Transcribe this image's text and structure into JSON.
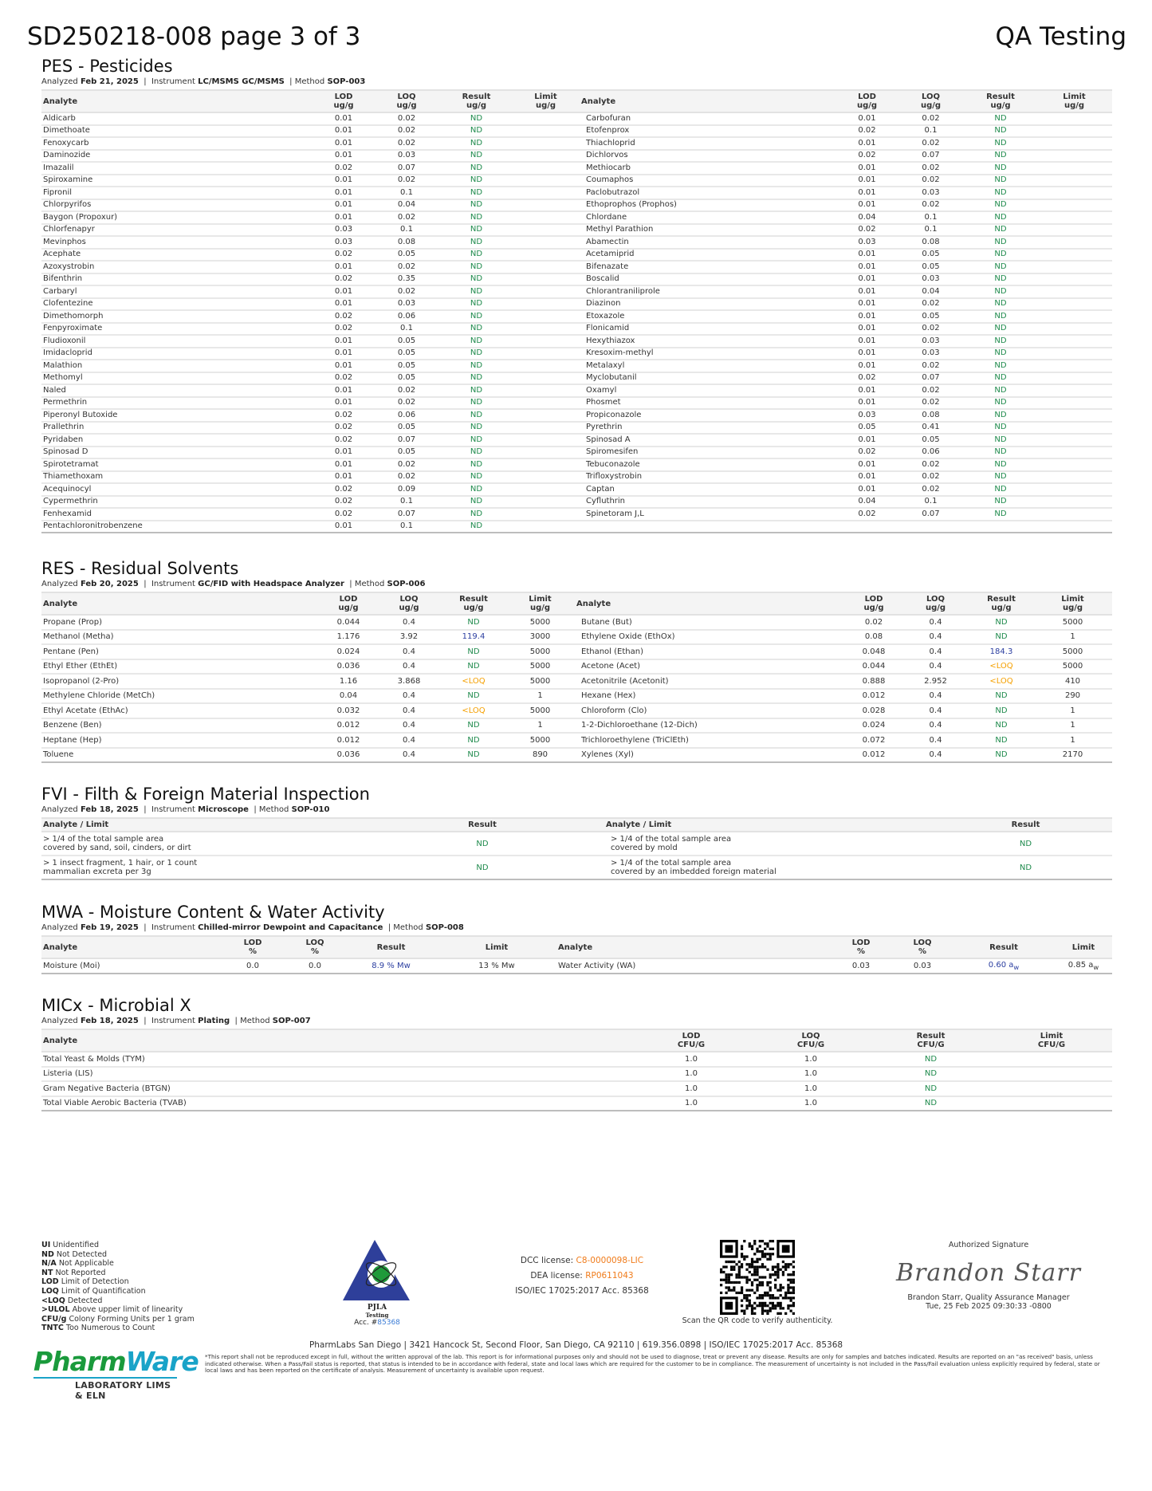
{
  "header": {
    "title": "SD250218-008 page 3 of 3",
    "right": "QA Testing"
  },
  "colors": {
    "nd": "#1e8a4c",
    "value": "#2b3ea0",
    "loq": "#f5a000",
    "license": "#f07b1a"
  },
  "pes": {
    "title": "PES - Pesticides",
    "meta": {
      "analyzed_label": "Analyzed",
      "analyzed": "Feb 21, 2025",
      "instrument_label": "Instrument",
      "instrument": "LC/MSMS GC/MSMS",
      "method_label": "Method",
      "method": "SOP-003"
    },
    "headers": [
      "Analyte",
      "LOD\nug/g",
      "LOQ\nug/g",
      "Result\nug/g",
      "Limit\nug/g"
    ],
    "left": [
      [
        "Aldicarb",
        "0.01",
        "0.02",
        "ND",
        ""
      ],
      [
        "Dimethoate",
        "0.01",
        "0.02",
        "ND",
        ""
      ],
      [
        "Fenoxycarb",
        "0.01",
        "0.02",
        "ND",
        ""
      ],
      [
        "Daminozide",
        "0.01",
        "0.03",
        "ND",
        ""
      ],
      [
        "Imazalil",
        "0.02",
        "0.07",
        "ND",
        ""
      ],
      [
        "Spiroxamine",
        "0.01",
        "0.02",
        "ND",
        ""
      ],
      [
        "Fipronil",
        "0.01",
        "0.1",
        "ND",
        ""
      ],
      [
        "Chlorpyrifos",
        "0.01",
        "0.04",
        "ND",
        ""
      ],
      [
        "Baygon (Propoxur)",
        "0.01",
        "0.02",
        "ND",
        ""
      ],
      [
        "Chlorfenapyr",
        "0.03",
        "0.1",
        "ND",
        ""
      ],
      [
        "Mevinphos",
        "0.03",
        "0.08",
        "ND",
        ""
      ],
      [
        "Acephate",
        "0.02",
        "0.05",
        "ND",
        ""
      ],
      [
        "Azoxystrobin",
        "0.01",
        "0.02",
        "ND",
        ""
      ],
      [
        "Bifenthrin",
        "0.02",
        "0.35",
        "ND",
        ""
      ],
      [
        "Carbaryl",
        "0.01",
        "0.02",
        "ND",
        ""
      ],
      [
        "Clofentezine",
        "0.01",
        "0.03",
        "ND",
        ""
      ],
      [
        "Dimethomorph",
        "0.02",
        "0.06",
        "ND",
        ""
      ],
      [
        "Fenpyroximate",
        "0.02",
        "0.1",
        "ND",
        ""
      ],
      [
        "Fludioxonil",
        "0.01",
        "0.05",
        "ND",
        ""
      ],
      [
        "Imidacloprid",
        "0.01",
        "0.05",
        "ND",
        ""
      ],
      [
        "Malathion",
        "0.01",
        "0.05",
        "ND",
        ""
      ],
      [
        "Methomyl",
        "0.02",
        "0.05",
        "ND",
        ""
      ],
      [
        "Naled",
        "0.01",
        "0.02",
        "ND",
        ""
      ],
      [
        "Permethrin",
        "0.01",
        "0.02",
        "ND",
        ""
      ],
      [
        "Piperonyl Butoxide",
        "0.02",
        "0.06",
        "ND",
        ""
      ],
      [
        "Prallethrin",
        "0.02",
        "0.05",
        "ND",
        ""
      ],
      [
        "Pyridaben",
        "0.02",
        "0.07",
        "ND",
        ""
      ],
      [
        "Spinosad D",
        "0.01",
        "0.05",
        "ND",
        ""
      ],
      [
        "Spirotetramat",
        "0.01",
        "0.02",
        "ND",
        ""
      ],
      [
        "Thiamethoxam",
        "0.01",
        "0.02",
        "ND",
        ""
      ],
      [
        "Acequinocyl",
        "0.02",
        "0.09",
        "ND",
        ""
      ],
      [
        "Cypermethrin",
        "0.02",
        "0.1",
        "ND",
        ""
      ],
      [
        "Fenhexamid",
        "0.02",
        "0.07",
        "ND",
        ""
      ],
      [
        "Pentachloronitrobenzene",
        "0.01",
        "0.1",
        "ND",
        ""
      ]
    ],
    "right": [
      [
        "Carbofuran",
        "0.01",
        "0.02",
        "ND",
        ""
      ],
      [
        "Etofenprox",
        "0.02",
        "0.1",
        "ND",
        ""
      ],
      [
        "Thiachloprid",
        "0.01",
        "0.02",
        "ND",
        ""
      ],
      [
        "Dichlorvos",
        "0.02",
        "0.07",
        "ND",
        ""
      ],
      [
        "Methiocarb",
        "0.01",
        "0.02",
        "ND",
        ""
      ],
      [
        "Coumaphos",
        "0.01",
        "0.02",
        "ND",
        ""
      ],
      [
        "Paclobutrazol",
        "0.01",
        "0.03",
        "ND",
        ""
      ],
      [
        "Ethoprophos (Prophos)",
        "0.01",
        "0.02",
        "ND",
        ""
      ],
      [
        "Chlordane",
        "0.04",
        "0.1",
        "ND",
        ""
      ],
      [
        "Methyl Parathion",
        "0.02",
        "0.1",
        "ND",
        ""
      ],
      [
        "Abamectin",
        "0.03",
        "0.08",
        "ND",
        ""
      ],
      [
        "Acetamiprid",
        "0.01",
        "0.05",
        "ND",
        ""
      ],
      [
        "Bifenazate",
        "0.01",
        "0.05",
        "ND",
        ""
      ],
      [
        "Boscalid",
        "0.01",
        "0.03",
        "ND",
        ""
      ],
      [
        "Chlorantraniliprole",
        "0.01",
        "0.04",
        "ND",
        ""
      ],
      [
        "Diazinon",
        "0.01",
        "0.02",
        "ND",
        ""
      ],
      [
        "Etoxazole",
        "0.01",
        "0.05",
        "ND",
        ""
      ],
      [
        "Flonicamid",
        "0.01",
        "0.02",
        "ND",
        ""
      ],
      [
        "Hexythiazox",
        "0.01",
        "0.03",
        "ND",
        ""
      ],
      [
        "Kresoxim-methyl",
        "0.01",
        "0.03",
        "ND",
        ""
      ],
      [
        "Metalaxyl",
        "0.01",
        "0.02",
        "ND",
        ""
      ],
      [
        "Myclobutanil",
        "0.02",
        "0.07",
        "ND",
        ""
      ],
      [
        "Oxamyl",
        "0.01",
        "0.02",
        "ND",
        ""
      ],
      [
        "Phosmet",
        "0.01",
        "0.02",
        "ND",
        ""
      ],
      [
        "Propiconazole",
        "0.03",
        "0.08",
        "ND",
        ""
      ],
      [
        "Pyrethrin",
        "0.05",
        "0.41",
        "ND",
        ""
      ],
      [
        "Spinosad A",
        "0.01",
        "0.05",
        "ND",
        ""
      ],
      [
        "Spiromesifen",
        "0.02",
        "0.06",
        "ND",
        ""
      ],
      [
        "Tebuconazole",
        "0.01",
        "0.02",
        "ND",
        ""
      ],
      [
        "Trifloxystrobin",
        "0.01",
        "0.02",
        "ND",
        ""
      ],
      [
        "Captan",
        "0.01",
        "0.02",
        "ND",
        ""
      ],
      [
        "Cyfluthrin",
        "0.04",
        "0.1",
        "ND",
        ""
      ],
      [
        "Spinetoram J,L",
        "0.02",
        "0.07",
        "ND",
        ""
      ]
    ]
  },
  "res": {
    "title": "RES - Residual Solvents",
    "meta": {
      "analyzed_label": "Analyzed",
      "analyzed": "Feb 20, 2025",
      "instrument_label": "Instrument",
      "instrument": "GC/FID with Headspace Analyzer",
      "method_label": "Method",
      "method": "SOP-006"
    },
    "headers": [
      "Analyte",
      "LOD\nug/g",
      "LOQ\nug/g",
      "Result\nug/g",
      "Limit\nug/g"
    ],
    "left": [
      [
        "Propane (Prop)",
        "0.044",
        "0.4",
        "ND",
        "5000"
      ],
      [
        "Methanol (Metha)",
        "1.176",
        "3.92",
        "119.4",
        "3000"
      ],
      [
        "Pentane (Pen)",
        "0.024",
        "0.4",
        "ND",
        "5000"
      ],
      [
        "Ethyl Ether (EthEt)",
        "0.036",
        "0.4",
        "ND",
        "5000"
      ],
      [
        "Isopropanol (2-Pro)",
        "1.16",
        "3.868",
        "<LOQ",
        "5000"
      ],
      [
        "Methylene Chloride (MetCh)",
        "0.04",
        "0.4",
        "ND",
        "1"
      ],
      [
        "Ethyl Acetate (EthAc)",
        "0.032",
        "0.4",
        "<LOQ",
        "5000"
      ],
      [
        "Benzene (Ben)",
        "0.012",
        "0.4",
        "ND",
        "1"
      ],
      [
        "Heptane (Hep)",
        "0.012",
        "0.4",
        "ND",
        "5000"
      ],
      [
        "Toluene",
        "0.036",
        "0.4",
        "ND",
        "890"
      ]
    ],
    "right": [
      [
        "Butane (But)",
        "0.02",
        "0.4",
        "ND",
        "5000"
      ],
      [
        "Ethylene Oxide (EthOx)",
        "0.08",
        "0.4",
        "ND",
        "1"
      ],
      [
        "Ethanol (Ethan)",
        "0.048",
        "0.4",
        "184.3",
        "5000"
      ],
      [
        "Acetone (Acet)",
        "0.044",
        "0.4",
        "<LOQ",
        "5000"
      ],
      [
        "Acetonitrile (Acetonit)",
        "0.888",
        "2.952",
        "<LOQ",
        "410"
      ],
      [
        "Hexane (Hex)",
        "0.012",
        "0.4",
        "ND",
        "290"
      ],
      [
        "Chloroform (Clo)",
        "0.028",
        "0.4",
        "ND",
        "1"
      ],
      [
        "1-2-Dichloroethane (12-Dich)",
        "0.024",
        "0.4",
        "ND",
        "1"
      ],
      [
        "Trichloroethylene (TriClEth)",
        "0.072",
        "0.4",
        "ND",
        "1"
      ],
      [
        "Xylenes (Xyl)",
        "0.012",
        "0.4",
        "ND",
        "2170"
      ]
    ]
  },
  "fvi": {
    "title": "FVI - Filth & Foreign Material Inspection",
    "meta": {
      "analyzed_label": "Analyzed",
      "analyzed": "Feb 18, 2025",
      "instrument_label": "Instrument",
      "instrument": "Microscope",
      "method_label": "Method",
      "method": "SOP-010"
    },
    "headers": [
      "Analyte / Limit",
      "Result"
    ],
    "left": [
      [
        "> 1/4 of the total sample area\ncovered by sand, soil, cinders, or dirt",
        "ND"
      ],
      [
        "> 1 insect fragment, 1 hair, or 1 count\nmammalian excreta per 3g",
        "ND"
      ]
    ],
    "right": [
      [
        "> 1/4 of the total sample area\ncovered by mold",
        "ND"
      ],
      [
        "> 1/4 of the total sample area\ncovered by an imbedded foreign material",
        "ND"
      ]
    ]
  },
  "mwa": {
    "title": "MWA - Moisture Content & Water Activity",
    "meta": {
      "analyzed_label": "Analyzed",
      "analyzed": "Feb 19, 2025",
      "instrument_label": "Instrument",
      "instrument": "Chilled-mirror Dewpoint and Capacitance",
      "method_label": "Method",
      "method": "SOP-008"
    },
    "headers": [
      "Analyte",
      "LOD\n%",
      "LOQ\n%",
      "Result",
      "Limit"
    ],
    "left": {
      "analyte": "Moisture (Moi)",
      "lod": "0.0",
      "loq": "0.0",
      "result": "8.9 % Mw",
      "limit": "13 % Mw"
    },
    "right": {
      "analyte": "Water Activity (WA)",
      "lod": "0.03",
      "loq": "0.03",
      "result": "0.60 a",
      "result_sub": "w",
      "limit": "0.85 a",
      "limit_sub": "w"
    }
  },
  "mic": {
    "title": "MICx - Microbial X",
    "meta": {
      "analyzed_label": "Analyzed",
      "analyzed": "Feb 18, 2025",
      "instrument_label": "Instrument",
      "instrument": "Plating",
      "method_label": "Method",
      "method": "SOP-007"
    },
    "headers": [
      "Analyte",
      "LOD\nCFU/G",
      "LOQ\nCFU/G",
      "Result\nCFU/G",
      "Limit\nCFU/G"
    ],
    "rows": [
      [
        "Total Yeast & Molds (TYM)",
        "1.0",
        "1.0",
        "ND",
        ""
      ],
      [
        "Listeria (LIS)",
        "1.0",
        "1.0",
        "ND",
        ""
      ],
      [
        "Gram Negative Bacteria (BTGN)",
        "1.0",
        "1.0",
        "ND",
        ""
      ],
      [
        "Total Viable Aerobic Bacteria (TVAB)",
        "1.0",
        "1.0",
        "ND",
        ""
      ]
    ]
  },
  "legend": [
    [
      "UI",
      "Unidentified"
    ],
    [
      "ND",
      "Not Detected"
    ],
    [
      "N/A",
      "Not Applicable"
    ],
    [
      "NT",
      "Not Reported"
    ],
    [
      "LOD",
      "Limit of Detection"
    ],
    [
      "LOQ",
      "Limit of Quantification"
    ],
    [
      "<LOQ",
      "Detected"
    ],
    [
      ">ULOL",
      "Above upper limit of linearity"
    ],
    [
      "CFU/g",
      "Colony Forming Units per 1 gram"
    ],
    [
      "TNTC",
      "Too Numerous to Count"
    ]
  ],
  "pjla": {
    "name": "PJLA",
    "sub": "Testing",
    "acc_label": "Acc. #",
    "acc": "85368"
  },
  "licenses": {
    "dcc_label": "DCC license:",
    "dcc": "C8-0000098-LIC",
    "dea_label": "DEA license:",
    "dea": "RP0611043",
    "iso": "ISO/IEC 17025:2017 Acc. 85368"
  },
  "qr": {
    "caption": "Scan the QR code to verify authenticity."
  },
  "signature": {
    "label": "Authorized Signature",
    "handwritten": "Brandon Starr",
    "name": "Brandon Starr, Quality Assurance Manager",
    "date": "Tue, 25 Feb 2025 09:30:33 -0800"
  },
  "address": "PharmLabs San Diego | 3421 Hancock St, Second Floor, San Diego, CA 92110 | 619.356.0898 | ISO/IEC 17025:2017 Acc. 85368",
  "logo": {
    "part1": "Pharm",
    "part2": "Ware",
    "tagline": "LABORATORY LIMS & ELN"
  },
  "disclaimer": "*This report shall not be reproduced except in full, without the written approval of the lab. This report is for informational purposes only and should not be used to diagnose, treat or prevent any disease. Results are only for samples and batches indicated. Results are reported on an \"as received\" basis, unless indicated otherwise. When a Pass/Fail status is reported, that status is intended to be in accordance with federal, state and local laws which are required for the customer to be in compliance. The measurement of uncertainty is not included in the Pass/Fail evaluation unless explicitly required by federal, state or local laws and has been reported on the certificate of analysis. Measurement of uncertainty is available upon request."
}
